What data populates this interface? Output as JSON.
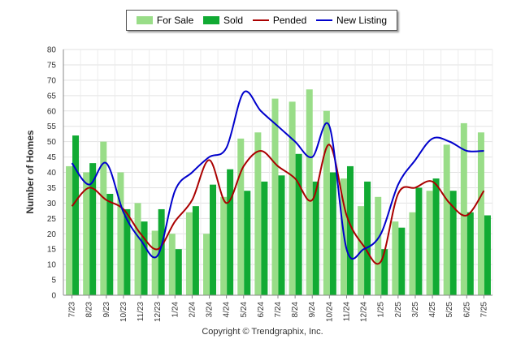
{
  "chart_data": {
    "type": "bar",
    "ylabel": "Number of Homes",
    "ylim": [
      0,
      80
    ],
    "yticks": [
      0,
      5,
      10,
      15,
      20,
      25,
      30,
      35,
      40,
      45,
      50,
      55,
      60,
      65,
      70,
      75,
      80
    ],
    "grid": true,
    "legend_position": "top-center",
    "categories": [
      "7/23",
      "8/23",
      "9/23",
      "10/23",
      "11/23",
      "12/23",
      "1/24",
      "2/24",
      "3/24",
      "4/24",
      "5/24",
      "6/24",
      "7/24",
      "8/24",
      "9/24",
      "10/24",
      "11/24",
      "12/24",
      "1/25",
      "2/25",
      "3/25",
      "4/25",
      "5/25",
      "6/25",
      "7/25"
    ],
    "series": [
      {
        "name": "For Sale",
        "kind": "bar",
        "color": "#99dd88",
        "values": [
          42,
          40,
          50,
          40,
          30,
          21,
          20,
          27,
          20,
          32,
          51,
          53,
          64,
          63,
          67,
          60,
          38,
          29,
          32,
          24,
          27,
          34,
          49,
          56,
          53
        ]
      },
      {
        "name": "Sold",
        "kind": "bar",
        "color": "#11aa33",
        "values": [
          52,
          43,
          33,
          28,
          24,
          28,
          15,
          29,
          36,
          41,
          34,
          37,
          39,
          46,
          37,
          40,
          42,
          37,
          15,
          22,
          35,
          38,
          34,
          27,
          26
        ]
      },
      {
        "name": "Pended",
        "kind": "line",
        "color": "#aa0000",
        "values": [
          29,
          35,
          31,
          28,
          20,
          15,
          24,
          31,
          44,
          30,
          42,
          47,
          42,
          38,
          31,
          49,
          26,
          16,
          11,
          33,
          35,
          37,
          30,
          26,
          34
        ]
      },
      {
        "name": "New Listing",
        "kind": "line",
        "color": "#0000cc",
        "values": [
          43,
          36,
          43,
          27,
          18,
          13,
          34,
          40,
          45,
          48,
          66,
          60,
          55,
          50,
          45,
          55,
          15,
          15,
          20,
          36,
          44,
          51,
          50,
          47,
          47
        ]
      }
    ]
  },
  "footer": {
    "copyright": "Copyright © Trendgraphix, Inc."
  }
}
